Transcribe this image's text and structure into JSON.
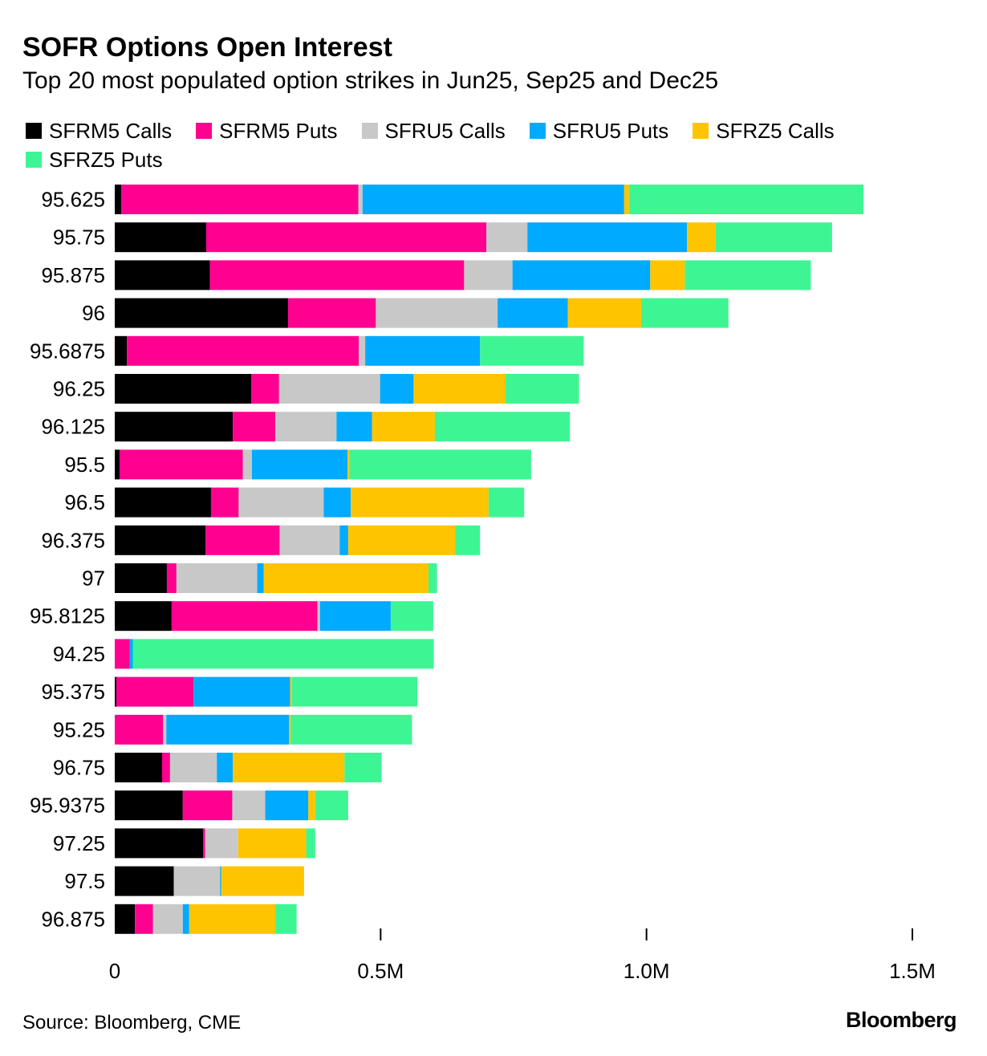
{
  "chart_data": {
    "type": "bar",
    "orientation": "horizontal",
    "stacked": true,
    "title": "SOFR Options Open Interest",
    "subtitle": "Top 20 most populated option strikes in Jun25, Sep25 and Dec25",
    "categories": [
      "95.625",
      "95.75",
      "95.875",
      "96",
      "95.6875",
      "96.25",
      "96.125",
      "95.5",
      "96.5",
      "96.375",
      "97",
      "95.8125",
      "94.25",
      "95.375",
      "95.25",
      "96.75",
      "95.9375",
      "97.25",
      "97.5",
      "96.875"
    ],
    "series": [
      {
        "name": "SFRM5 Calls",
        "color": "#000000",
        "values": [
          12000,
          172000,
          179000,
          326000,
          23000,
          257000,
          222000,
          9000,
          181000,
          171000,
          98000,
          107000,
          0,
          3000,
          0,
          89000,
          128000,
          166000,
          111000,
          38000
        ]
      },
      {
        "name": "SFRM5 Puts",
        "color": "#ff0090",
        "values": [
          446000,
          527000,
          478000,
          165000,
          436000,
          52000,
          80000,
          232000,
          52000,
          139000,
          18000,
          274000,
          28000,
          145000,
          91000,
          15000,
          93000,
          4000,
          0,
          34000
        ]
      },
      {
        "name": "SFRU5 Calls",
        "color": "#c8c8c8",
        "values": [
          8000,
          77000,
          91000,
          229000,
          12000,
          190000,
          115000,
          17000,
          160000,
          113000,
          152000,
          5000,
          0,
          0,
          6000,
          88000,
          62000,
          62000,
          87000,
          56000
        ]
      },
      {
        "name": "SFRU5 Puts",
        "color": "#00aaff",
        "values": [
          492000,
          300000,
          259000,
          132000,
          216000,
          63000,
          67000,
          180000,
          51000,
          16000,
          12000,
          133000,
          6000,
          182000,
          231000,
          30000,
          81000,
          0,
          2000,
          12000
        ]
      },
      {
        "name": "SFRZ5 Calls",
        "color": "#ffc400",
        "values": [
          9000,
          54000,
          65000,
          138000,
          0,
          173000,
          118000,
          3000,
          259000,
          201000,
          310000,
          0,
          0,
          3000,
          3000,
          210000,
          13000,
          128000,
          156000,
          162000
        ]
      },
      {
        "name": "SFRZ5 Puts",
        "color": "#3ef594",
        "values": [
          441000,
          219000,
          237000,
          164000,
          195000,
          138000,
          254000,
          342000,
          67000,
          47000,
          16000,
          80000,
          566000,
          236000,
          228000,
          70000,
          62000,
          17000,
          0,
          40000
        ]
      }
    ],
    "xlim": [
      0,
      1500000
    ],
    "xticks": [
      0,
      500000,
      1000000,
      1500000
    ],
    "xtick_labels": [
      "0",
      "0.5M",
      "1.0M",
      "1.5M"
    ],
    "xlabel": "",
    "ylabel": "",
    "grid": false,
    "legend_position": "top"
  },
  "source": "Source: Bloomberg, CME",
  "brand": "Bloomberg"
}
